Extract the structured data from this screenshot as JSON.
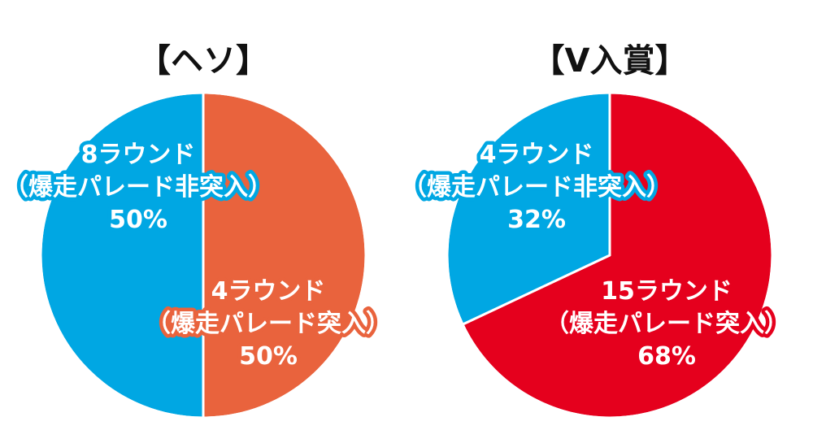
{
  "chart_data": [
    {
      "type": "pie",
      "title": "【ヘソ】",
      "slices": [
        {
          "name": "4ラウンド",
          "sub": "（爆走パレード突入）",
          "percent_label": "50%",
          "value": 50,
          "color": "#E9633D"
        },
        {
          "name": "8ラウンド",
          "sub": "（爆走パレード非突入）",
          "percent_label": "50%",
          "value": 50,
          "color": "#00A7E3"
        }
      ]
    },
    {
      "type": "pie",
      "title": "【V入賞】",
      "slices": [
        {
          "name": "15ラウンド",
          "sub": "（爆走パレード突入）",
          "percent_label": "68%",
          "value": 68,
          "color": "#E5001D"
        },
        {
          "name": "4ラウンド",
          "sub": "（爆走パレード非突入）",
          "percent_label": "32%",
          "value": 32,
          "color": "#00A7E3"
        }
      ]
    }
  ]
}
